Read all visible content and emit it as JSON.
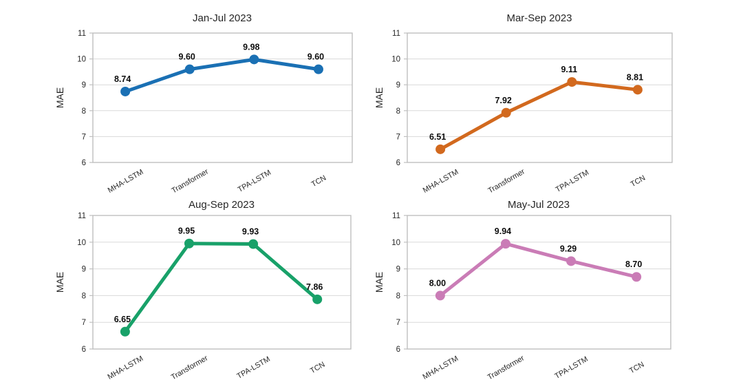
{
  "figure": {
    "background": "#ffffff",
    "description_title": "MAE comparison of forecasting models across four periods"
  },
  "chart_data": [
    {
      "type": "line",
      "title": "Jan-Jul 2023",
      "categories": [
        "MHA-LSTM",
        "Transformer",
        "TPA-LSTM",
        "TCN"
      ],
      "values": [
        8.74,
        9.6,
        9.98,
        9.6
      ],
      "point_labels": [
        "8.74",
        "9.60",
        "9.98",
        "9.60"
      ],
      "color": "#1A70B4",
      "xlabel": "",
      "ylabel": "MAE",
      "ylim": [
        6,
        11
      ],
      "yticks": [
        6,
        7,
        8,
        9,
        10,
        11
      ],
      "grid": "horizontal",
      "legend": "none"
    },
    {
      "type": "line",
      "title": "Mar-Sep 2023",
      "categories": [
        "MHA-LSTM",
        "Transformer",
        "TPA-LSTM",
        "TCN"
      ],
      "values": [
        6.51,
        7.92,
        9.11,
        8.81
      ],
      "point_labels": [
        "6.51",
        "7.92",
        "9.11",
        "8.81"
      ],
      "color": "#D2691E",
      "xlabel": "",
      "ylabel": "MAE",
      "ylim": [
        6,
        11
      ],
      "yticks": [
        6,
        7,
        8,
        9,
        10,
        11
      ],
      "grid": "horizontal",
      "legend": "none"
    },
    {
      "type": "line",
      "title": "Aug-Sep 2023",
      "categories": [
        "MHA-LSTM",
        "Transformer",
        "TPA-LSTM",
        "TCN"
      ],
      "values": [
        6.65,
        9.95,
        9.93,
        7.86
      ],
      "point_labels": [
        "6.65",
        "9.95",
        "9.93",
        "7.86"
      ],
      "color": "#18A169",
      "xlabel": "",
      "ylabel": "MAE",
      "ylim": [
        6,
        11
      ],
      "yticks": [
        6,
        7,
        8,
        9,
        10,
        11
      ],
      "grid": "horizontal",
      "legend": "none"
    },
    {
      "type": "line",
      "title": "May-Jul 2023",
      "categories": [
        "MHA-LSTM",
        "Transformer",
        "TPA-LSTM",
        "TCN"
      ],
      "values": [
        8.0,
        9.94,
        9.29,
        8.7
      ],
      "point_labels": [
        "8.00",
        "9.94",
        "9.29",
        "8.70"
      ],
      "color": "#CA7CB6",
      "xlabel": "",
      "ylabel": "MAE",
      "ylim": [
        6,
        11
      ],
      "yticks": [
        6,
        7,
        8,
        9,
        10,
        11
      ],
      "grid": "horizontal",
      "legend": "none"
    }
  ],
  "style_colors": {
    "grid_line": "#d9d9d9",
    "plot_border": "#bfbfbf",
    "tick_text": "#262626",
    "title_text": "#262626",
    "data_label_text": "#0d0d0d"
  }
}
